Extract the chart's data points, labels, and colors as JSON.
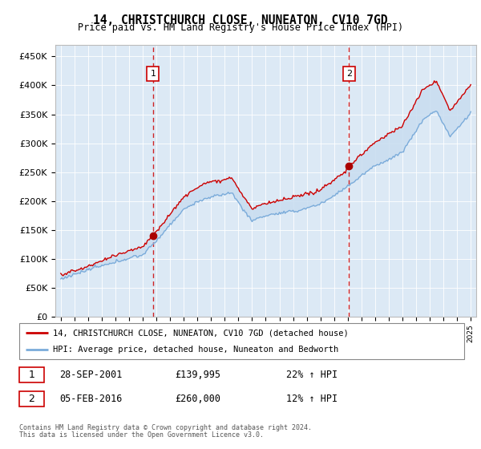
{
  "title": "14, CHRISTCHURCH CLOSE, NUNEATON, CV10 7GD",
  "subtitle": "Price paid vs. HM Land Registry's House Price Index (HPI)",
  "background_color": "#dce9f5",
  "plot_bg_color": "#dce9f5",
  "ylim": [
    0,
    470000
  ],
  "yticks": [
    0,
    50000,
    100000,
    150000,
    200000,
    250000,
    300000,
    350000,
    400000,
    450000
  ],
  "ytick_labels": [
    "£0",
    "£50K",
    "£100K",
    "£150K",
    "£200K",
    "£250K",
    "£300K",
    "£350K",
    "£400K",
    "£450K"
  ],
  "sale1_date_num": 2001.75,
  "sale1_price": 139995,
  "sale1_date_str": "28-SEP-2001",
  "sale1_pct": "22%",
  "sale2_date_num": 2016.09,
  "sale2_price": 260000,
  "sale2_date_str": "05-FEB-2016",
  "sale2_pct": "12%",
  "legend1_text": "14, CHRISTCHURCH CLOSE, NUNEATON, CV10 7GD (detached house)",
  "legend2_text": "HPI: Average price, detached house, Nuneaton and Bedworth",
  "footer1": "Contains HM Land Registry data © Crown copyright and database right 2024.",
  "footer2": "This data is licensed under the Open Government Licence v3.0.",
  "sale_color": "#cc0000",
  "hpi_color": "#7aabda",
  "marker_color": "#aa0000",
  "fill_color": "#c8ddf0"
}
